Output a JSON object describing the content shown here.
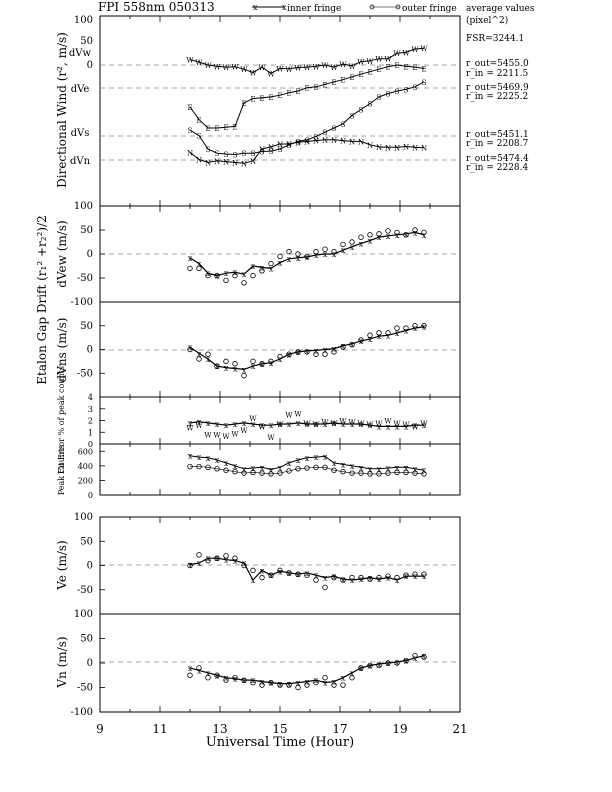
{
  "header": {
    "title": "FPI 558nm 050313",
    "legend_inner": "inner fringe",
    "legend_outer": "outer fringe",
    "avg_title": "average values",
    "avg_unit": "(pixel^2)"
  },
  "side_values": {
    "fsr": "FSR=3244.1",
    "w_out": "r_out=5455.0",
    "w_in": "r_in = 2211.5",
    "e_out": "r_out=5469.9",
    "e_in": "r_in = 2225.2",
    "s_out": "r_out=5451.1",
    "s_in": "r_in = 2208.7",
    "n_out": "r_out=5474.4",
    "n_in": "r_in = 2228.4"
  },
  "xaxis": {
    "label": "Universal Time (Hour)",
    "ticks": [
      "9",
      "11",
      "13",
      "15",
      "17",
      "19",
      "21"
    ],
    "range": [
      9,
      21
    ]
  },
  "panels": {
    "dir": {
      "ylabel": "Directional Wind (r², m/s)",
      "tick_top": "100",
      "labels": [
        "dVw",
        "0",
        "dVe",
        "dVs",
        "dVn"
      ]
    },
    "etalon": {
      "ylabel_a": "Etalon Gap Drift (r₁² +r₂²)/2",
      "ylabel_b": "dVew (m/s)",
      "ylabel_c": "dVns (m/s)",
      "ticks": [
        "100",
        "50",
        "0",
        "-50",
        "-100"
      ]
    },
    "fit": {
      "ylabel": "Fit Error % of peak counts",
      "ticks": [
        "4",
        "3",
        "2",
        "1",
        "0"
      ]
    },
    "peak": {
      "ylabel": "Peak Counts",
      "ticks": [
        "600",
        "400",
        "200",
        "0"
      ]
    },
    "ve": {
      "ylabel": "Ve (m/s)",
      "ticks": [
        "100",
        "50",
        "0",
        "-50",
        "-100"
      ]
    },
    "vn": {
      "ylabel": "Vn (m/s)",
      "ticks": [
        "100",
        "50",
        "0",
        "-50",
        "-100"
      ]
    }
  },
  "chart_data": [
    {
      "type": "line",
      "title": "Directional Wind",
      "x": [
        12.0,
        12.3,
        12.6,
        12.9,
        13.2,
        13.5,
        13.8,
        14.1,
        14.4,
        14.7,
        15.0,
        15.3,
        15.6,
        15.9,
        16.2,
        16.5,
        16.8,
        17.1,
        17.4,
        17.7,
        18.0,
        18.3,
        18.6,
        18.9,
        19.2,
        19.5,
        19.8
      ],
      "series": [
        {
          "name": "dVw",
          "values": [
            13,
            7,
            0,
            -3,
            -5,
            -4,
            -10,
            -18,
            -5,
            -20,
            -8,
            -9,
            -6,
            -5,
            -3,
            0,
            -5,
            2,
            -2,
            8,
            10,
            15,
            15,
            28,
            30,
            38,
            40
          ]
        },
        {
          "name": "dVe",
          "values": [
            -100,
            -130,
            -150,
            -150,
            -148,
            -146,
            -90,
            -80,
            -78,
            -76,
            -72,
            -66,
            -62,
            -54,
            -52,
            -46,
            -40,
            -35,
            -28,
            -22,
            -16,
            -10,
            -4,
            0,
            -3,
            -5,
            -8
          ]
        },
        {
          "name": "dVs",
          "values": [
            -155,
            -168,
            -200,
            -210,
            -212,
            -213,
            -210,
            -210,
            -206,
            -205,
            -200,
            -190,
            -182,
            -178,
            -170,
            -160,
            -150,
            -140,
            -120,
            -106,
            -92,
            -76,
            -68,
            -62,
            -58,
            -52,
            -40
          ]
        },
        {
          "name": "dVn",
          "values": [
            -208,
            -225,
            -232,
            -228,
            -230,
            -232,
            -234,
            -228,
            -200,
            -195,
            -188,
            -188,
            -184,
            -182,
            -180,
            -178,
            -178,
            -180,
            -182,
            -182,
            -190,
            -195,
            -196,
            -196,
            -194,
            -196,
            -197
          ]
        }
      ]
    },
    {
      "type": "line",
      "title": "dVew",
      "ylim": [
        -100,
        100
      ],
      "x": [
        12.0,
        12.3,
        12.6,
        12.9,
        13.2,
        13.5,
        13.8,
        14.1,
        14.4,
        14.7,
        15.0,
        15.3,
        15.6,
        15.9,
        16.2,
        16.5,
        16.8,
        17.1,
        17.4,
        17.7,
        18.0,
        18.3,
        18.6,
        18.9,
        19.2,
        19.5,
        19.8
      ],
      "series": [
        {
          "name": "inner fringe",
          "values": [
            -8,
            -20,
            -40,
            -45,
            -40,
            -38,
            -42,
            -25,
            -28,
            -30,
            -18,
            -10,
            -8,
            -6,
            -2,
            0,
            0,
            8,
            15,
            22,
            28,
            35,
            38,
            40,
            42,
            45,
            40
          ]
        },
        {
          "name": "outer fringe",
          "values": [
            -30,
            -30,
            -45,
            -45,
            -55,
            -45,
            -60,
            -45,
            -35,
            -20,
            -5,
            5,
            0,
            -5,
            5,
            10,
            5,
            20,
            25,
            35,
            40,
            42,
            48,
            45,
            40,
            50,
            45
          ]
        }
      ]
    },
    {
      "type": "line",
      "title": "dVns",
      "ylim": [
        -100,
        100
      ],
      "x": [
        12.0,
        12.3,
        12.6,
        12.9,
        13.2,
        13.5,
        13.8,
        14.1,
        14.4,
        14.7,
        15.0,
        15.3,
        15.6,
        15.9,
        16.2,
        16.5,
        16.8,
        17.1,
        17.4,
        17.7,
        18.0,
        18.3,
        18.6,
        18.9,
        19.2,
        19.5,
        19.8
      ],
      "series": [
        {
          "name": "inner fringe",
          "values": [
            5,
            -8,
            -20,
            -35,
            -38,
            -40,
            -42,
            -35,
            -30,
            -28,
            -20,
            -10,
            -5,
            -3,
            -2,
            0,
            2,
            8,
            12,
            18,
            22,
            28,
            30,
            35,
            40,
            45,
            48
          ]
        },
        {
          "name": "outer fringe",
          "values": [
            0,
            -20,
            -10,
            -35,
            -25,
            -30,
            -55,
            -25,
            -30,
            -25,
            -15,
            -10,
            -5,
            -5,
            -10,
            -10,
            -5,
            5,
            10,
            20,
            30,
            35,
            35,
            45,
            45,
            50,
            50
          ]
        }
      ]
    },
    {
      "type": "line",
      "title": "Fit Error",
      "ylim": [
        0,
        4
      ],
      "x": [
        12.0,
        12.3,
        12.6,
        12.9,
        13.2,
        13.5,
        13.8,
        14.1,
        14.4,
        14.7,
        15.0,
        15.3,
        15.6,
        15.9,
        16.2,
        16.5,
        16.8,
        17.1,
        17.4,
        17.7,
        18.0,
        18.3,
        18.6,
        18.9,
        19.2,
        19.5,
        19.8
      ],
      "series": [
        {
          "name": "inner fringe",
          "values": [
            1.8,
            1.9,
            1.8,
            1.7,
            1.6,
            1.7,
            1.8,
            1.7,
            1.6,
            1.6,
            1.7,
            1.7,
            1.8,
            1.7,
            1.7,
            1.7,
            1.8,
            1.7,
            1.7,
            1.7,
            1.6,
            1.5,
            1.5,
            1.5,
            1.5,
            1.6,
            1.6
          ]
        },
        {
          "name": "outer fringe",
          "values": [
            1.4,
            1.6,
            0.8,
            0.8,
            0.7,
            0.9,
            1.2,
            2.2,
            1.5,
            0.6,
            1.7,
            2.5,
            2.6,
            1.8,
            1.7,
            1.9,
            1.8,
            2.0,
            1.9,
            1.8,
            1.7,
            1.8,
            2.0,
            1.8,
            1.7,
            1.5,
            1.8
          ]
        }
      ]
    },
    {
      "type": "line",
      "title": "Peak Counts",
      "ylim": [
        0,
        700
      ],
      "x": [
        12.0,
        12.3,
        12.6,
        12.9,
        13.2,
        13.5,
        13.8,
        14.1,
        14.4,
        14.7,
        15.0,
        15.3,
        15.6,
        15.9,
        16.2,
        16.5,
        16.8,
        17.1,
        17.4,
        17.7,
        18.0,
        18.3,
        18.6,
        18.9,
        19.2,
        19.5,
        19.8
      ],
      "series": [
        {
          "name": "inner fringe",
          "values": [
            540,
            520,
            510,
            480,
            440,
            400,
            360,
            370,
            380,
            350,
            380,
            440,
            480,
            510,
            520,
            530,
            440,
            420,
            400,
            380,
            360,
            360,
            370,
            380,
            380,
            360,
            340
          ]
        },
        {
          "name": "outer fringe",
          "values": [
            390,
            390,
            380,
            360,
            340,
            320,
            300,
            310,
            300,
            290,
            300,
            330,
            360,
            370,
            380,
            380,
            340,
            320,
            300,
            300,
            290,
            290,
            300,
            310,
            310,
            300,
            290
          ]
        }
      ]
    },
    {
      "type": "line",
      "title": "Ve",
      "ylim": [
        -100,
        100
      ],
      "x": [
        12.0,
        12.3,
        12.6,
        12.9,
        13.2,
        13.5,
        13.8,
        14.1,
        14.4,
        14.7,
        15.0,
        15.3,
        15.6,
        15.9,
        16.2,
        16.5,
        16.8,
        17.1,
        17.4,
        17.7,
        18.0,
        18.3,
        18.6,
        18.9,
        19.2,
        19.5,
        19.8
      ],
      "series": [
        {
          "name": "inner fringe",
          "values": [
            2,
            5,
            15,
            15,
            12,
            10,
            5,
            -30,
            -10,
            -20,
            -12,
            -15,
            -18,
            -15,
            -20,
            -25,
            -22,
            -28,
            -30,
            -28,
            -25,
            -28,
            -25,
            -30,
            -22,
            -22,
            -22
          ]
        },
        {
          "name": "outer fringe",
          "values": [
            0,
            22,
            10,
            15,
            20,
            15,
            0,
            -10,
            -25,
            -20,
            -10,
            -15,
            -18,
            -20,
            -30,
            -45,
            -25,
            -30,
            -25,
            -25,
            -28,
            -25,
            -22,
            -25,
            -20,
            -18,
            -18
          ]
        }
      ]
    },
    {
      "type": "line",
      "title": "Vn",
      "ylim": [
        -100,
        100
      ],
      "x": [
        12.0,
        12.3,
        12.6,
        12.9,
        13.2,
        13.5,
        13.8,
        14.1,
        14.4,
        14.7,
        15.0,
        15.3,
        15.6,
        15.9,
        16.2,
        16.5,
        16.8,
        17.1,
        17.4,
        17.7,
        18.0,
        18.3,
        18.6,
        18.9,
        19.2,
        19.5,
        19.8
      ],
      "series": [
        {
          "name": "inner fringe",
          "values": [
            -10,
            -15,
            -20,
            -25,
            -30,
            -32,
            -35,
            -35,
            -38,
            -40,
            -42,
            -42,
            -40,
            -38,
            -35,
            -40,
            -38,
            -30,
            -20,
            -10,
            -5,
            -2,
            0,
            2,
            5,
            10,
            15
          ]
        },
        {
          "name": "outer fringe",
          "values": [
            -25,
            -10,
            -30,
            -25,
            -35,
            -30,
            -35,
            -40,
            -45,
            -40,
            -45,
            -45,
            -50,
            -45,
            -40,
            -30,
            -45,
            -45,
            -30,
            -10,
            -5,
            -5,
            0,
            0,
            5,
            15,
            12
          ]
        }
      ]
    }
  ]
}
